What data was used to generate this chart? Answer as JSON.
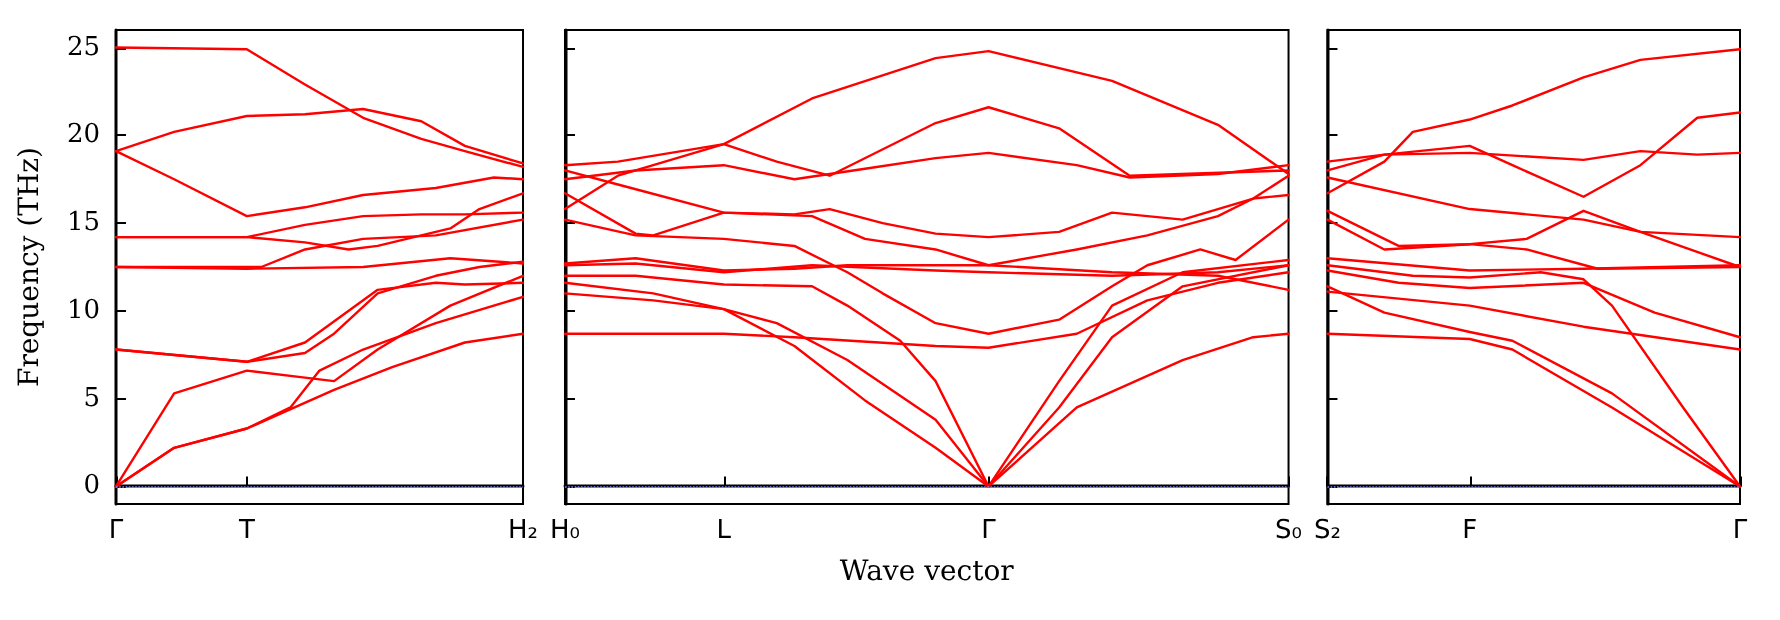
{
  "chart_data": [
    {
      "type": "line",
      "ylabel": "Frequency (THz)",
      "categories": [
        "Γ",
        null,
        null,
        null,
        null,
        null,
        null,
        null,
        null,
        "T",
        null,
        null,
        null,
        null,
        null,
        null,
        null,
        null,
        null,
        null,
        null,
        null,
        null,
        null,
        null,
        null,
        null,
        null,
        "H₂"
      ],
      "ylim": [
        -1,
        26
      ],
      "yticks": [
        0,
        5,
        10,
        15,
        20,
        25
      ],
      "grid": false,
      "line_style": "solid",
      "ref_lines": [
        {
          "axis": "y",
          "value": 0,
          "color": "#8080ff",
          "line_style": "dotted"
        }
      ],
      "series": [
        {
          "color": "#ff0000",
          "values": [
            25.0,
            null,
            null,
            null,
            null,
            null,
            null,
            null,
            null,
            24.9,
            null,
            null,
            null,
            22.9,
            null,
            null,
            null,
            21.0,
            null,
            null,
            null,
            19.8,
            null,
            null,
            19.1,
            null,
            null,
            null,
            18.2
          ]
        },
        {
          "color": "#ff0000",
          "values": [
            19.1,
            null,
            null,
            null,
            20.2,
            null,
            null,
            null,
            null,
            21.1,
            null,
            null,
            null,
            21.2,
            null,
            null,
            null,
            21.5,
            null,
            null,
            null,
            20.8,
            null,
            null,
            19.4,
            null,
            null,
            null,
            18.4
          ]
        },
        {
          "color": "#ff0000",
          "values": [
            19.1,
            null,
            null,
            null,
            17.5,
            null,
            null,
            null,
            null,
            15.4,
            null,
            null,
            null,
            15.9,
            null,
            null,
            null,
            16.6,
            null,
            null,
            null,
            null,
            17.0,
            null,
            null,
            null,
            17.6,
            null,
            17.5
          ]
        },
        {
          "color": "#ff0000",
          "values": [
            14.2,
            null,
            null,
            null,
            null,
            null,
            null,
            null,
            null,
            14.2,
            null,
            null,
            null,
            13.9,
            null,
            null,
            13.5,
            null,
            13.7,
            null,
            null,
            null,
            null,
            14.7,
            null,
            15.8,
            null,
            null,
            16.7
          ]
        },
        {
          "color": "#ff0000",
          "values": [
            14.2,
            null,
            null,
            null,
            null,
            null,
            null,
            null,
            null,
            14.2,
            null,
            null,
            null,
            14.9,
            null,
            null,
            null,
            15.4,
            null,
            null,
            null,
            15.5,
            null,
            null,
            15.5,
            null,
            null,
            null,
            15.6
          ]
        },
        {
          "color": "#ff0000",
          "values": [
            12.5,
            null,
            null,
            null,
            null,
            null,
            null,
            null,
            null,
            12.5,
            12.5,
            null,
            null,
            13.5,
            null,
            null,
            null,
            14.1,
            null,
            null,
            null,
            null,
            14.3,
            null,
            null,
            null,
            null,
            null,
            15.2
          ]
        },
        {
          "color": "#ff0000",
          "values": [
            12.5,
            null,
            null,
            null,
            null,
            null,
            null,
            null,
            null,
            12.4,
            null,
            null,
            null,
            null,
            null,
            null,
            null,
            12.5,
            null,
            null,
            null,
            null,
            null,
            13.0,
            null,
            null,
            null,
            null,
            12.7
          ]
        },
        {
          "color": "#ff0000",
          "values": [
            7.8,
            null,
            null,
            null,
            null,
            null,
            null,
            null,
            null,
            7.1,
            null,
            null,
            null,
            8.2,
            null,
            null,
            null,
            null,
            11.2,
            null,
            null,
            null,
            11.6,
            null,
            11.5,
            null,
            null,
            null,
            11.6
          ]
        },
        {
          "color": "#ff0000",
          "values": [
            7.8,
            null,
            null,
            null,
            null,
            null,
            null,
            null,
            null,
            7.1,
            null,
            null,
            null,
            7.6,
            null,
            8.7,
            null,
            null,
            11.0,
            null,
            null,
            null,
            12.0,
            null,
            null,
            12.5,
            null,
            null,
            12.8
          ]
        },
        {
          "color": "#ff0000",
          "values": [
            0,
            null,
            null,
            null,
            5.3,
            null,
            null,
            null,
            null,
            6.6,
            null,
            null,
            null,
            6.2,
            null,
            6.0,
            null,
            null,
            7.8,
            null,
            null,
            null,
            null,
            10.3,
            null,
            null,
            null,
            null,
            12.0
          ]
        },
        {
          "color": "#ff0000",
          "values": [
            0,
            null,
            null,
            null,
            2.2,
            null,
            null,
            null,
            null,
            3.3,
            null,
            null,
            4.5,
            null,
            6.6,
            null,
            null,
            7.8,
            null,
            null,
            null,
            null,
            9.3,
            null,
            null,
            null,
            null,
            null,
            10.8
          ]
        },
        {
          "color": "#ff0000",
          "values": [
            0,
            null,
            null,
            null,
            2.2,
            null,
            null,
            null,
            null,
            3.3,
            null,
            null,
            null,
            null,
            null,
            5.5,
            null,
            null,
            null,
            6.8,
            null,
            null,
            null,
            null,
            8.2,
            null,
            null,
            null,
            8.7
          ]
        }
      ]
    },
    {
      "type": "line",
      "xlabel": "Wave vector",
      "categories": [
        "H₀",
        null,
        null,
        null,
        null,
        null,
        null,
        null,
        null,
        "L",
        null,
        null,
        null,
        null,
        null,
        null,
        null,
        null,
        null,
        null,
        null,
        null,
        null,
        null,
        "Γ",
        null,
        null,
        null,
        null,
        null,
        null,
        null,
        null,
        null,
        null,
        null,
        null,
        null,
        null,
        null,
        null,
        "S₀"
      ],
      "ylim": [
        -1,
        26
      ],
      "yticks": [
        0,
        5,
        10,
        15,
        20,
        25
      ],
      "tick_labels": "x",
      "grid": false,
      "line_style": "solid",
      "ref_lines": [
        {
          "axis": "y",
          "value": 0,
          "color": "#8080ff",
          "line_style": "dotted"
        }
      ],
      "series": [
        {
          "color": "#ff0000",
          "values": [
            18.3,
            null,
            null,
            18.5,
            null,
            null,
            null,
            null,
            null,
            19.5,
            null,
            null,
            null,
            null,
            22.1,
            null,
            null,
            null,
            null,
            null,
            null,
            24.4,
            null,
            null,
            24.8,
            null,
            null,
            null,
            null,
            null,
            null,
            23.1,
            null,
            null,
            null,
            null,
            null,
            20.6,
            null,
            null,
            null,
            17.8
          ]
        },
        {
          "color": "#ff0000",
          "values": [
            15.8,
            null,
            null,
            17.7,
            null,
            null,
            null,
            null,
            null,
            19.5,
            null,
            null,
            18.5,
            null,
            null,
            17.7,
            null,
            null,
            null,
            null,
            null,
            20.7,
            null,
            null,
            21.6,
            null,
            null,
            null,
            20.4,
            null,
            null,
            null,
            17.7,
            null,
            null,
            null,
            null,
            null,
            null,
            null,
            null,
            18.0
          ]
        },
        {
          "color": "#ff0000",
          "values": [
            17.5,
            null,
            null,
            null,
            18.0,
            null,
            null,
            null,
            null,
            18.3,
            null,
            null,
            null,
            17.5,
            null,
            null,
            null,
            18.1,
            null,
            null,
            null,
            18.7,
            null,
            null,
            19.0,
            null,
            null,
            null,
            null,
            18.3,
            null,
            null,
            17.6,
            null,
            null,
            null,
            null,
            17.8,
            null,
            null,
            null,
            18.3
          ]
        },
        {
          "color": "#ff0000",
          "values": [
            18.0,
            null,
            null,
            17.2,
            null,
            null,
            null,
            null,
            null,
            15.6,
            null,
            null,
            null,
            15.5,
            null,
            15.8,
            null,
            null,
            15.0,
            null,
            null,
            14.4,
            null,
            null,
            14.2,
            null,
            null,
            null,
            14.5,
            null,
            null,
            15.6,
            null,
            null,
            null,
            15.2,
            null,
            null,
            null,
            16.4,
            null,
            17.7
          ]
        },
        {
          "color": "#ff0000",
          "values": [
            16.7,
            null,
            null,
            null,
            14.4,
            14.3,
            null,
            null,
            null,
            15.6,
            null,
            null,
            null,
            null,
            15.4,
            null,
            null,
            14.1,
            null,
            null,
            null,
            13.5,
            null,
            null,
            12.6,
            null,
            null,
            null,
            null,
            13.5,
            null,
            null,
            null,
            14.3,
            null,
            null,
            null,
            15.4,
            null,
            16.4,
            null,
            16.6
          ]
        },
        {
          "color": "#ff0000",
          "values": [
            15.2,
            null,
            null,
            null,
            14.3,
            null,
            null,
            null,
            null,
            14.1,
            null,
            null,
            null,
            13.7,
            null,
            null,
            12.2,
            null,
            11.0,
            null,
            null,
            9.3,
            null,
            null,
            8.7,
            null,
            null,
            null,
            9.5,
            null,
            null,
            11.4,
            null,
            12.6,
            null,
            null,
            13.5,
            null,
            12.9,
            null,
            null,
            15.2
          ]
        },
        {
          "color": "#ff0000",
          "values": [
            12.7,
            null,
            null,
            null,
            13.0,
            null,
            null,
            null,
            null,
            12.3,
            null,
            null,
            null,
            12.4,
            null,
            null,
            12.6,
            null,
            null,
            null,
            null,
            12.6,
            null,
            null,
            12.6,
            null,
            null,
            null,
            null,
            null,
            null,
            12.2,
            null,
            null,
            null,
            null,
            null,
            12.0,
            null,
            null,
            null,
            11.2
          ]
        },
        {
          "color": "#ff0000",
          "values": [
            12.6,
            null,
            null,
            null,
            12.7,
            null,
            null,
            null,
            null,
            12.2,
            null,
            null,
            null,
            null,
            12.6,
            null,
            null,
            null,
            null,
            null,
            null,
            12.3,
            null,
            null,
            12.2,
            null,
            null,
            null,
            null,
            null,
            null,
            12.0,
            null,
            null,
            null,
            null,
            null,
            12.2,
            null,
            null,
            null,
            12.6
          ]
        },
        {
          "color": "#ff0000",
          "values": [
            12.0,
            null,
            null,
            null,
            12.0,
            null,
            null,
            null,
            null,
            11.5,
            null,
            null,
            null,
            null,
            11.4,
            null,
            10.3,
            null,
            null,
            8.3,
            null,
            6.0,
            null,
            null,
            0,
            null,
            null,
            null,
            6.0,
            null,
            null,
            10.3,
            null,
            null,
            null,
            12.2,
            null,
            null,
            null,
            null,
            null,
            12.9
          ]
        },
        {
          "color": "#ff0000",
          "values": [
            11.6,
            null,
            null,
            null,
            null,
            11.0,
            null,
            null,
            null,
            10.1,
            null,
            null,
            9.3,
            null,
            null,
            null,
            7.2,
            null,
            null,
            null,
            null,
            3.8,
            null,
            null,
            0,
            null,
            null,
            null,
            4.5,
            null,
            null,
            8.5,
            null,
            null,
            null,
            11.4,
            null,
            null,
            null,
            null,
            null,
            12.6
          ]
        },
        {
          "color": "#ff0000",
          "values": [
            11.0,
            null,
            null,
            null,
            null,
            10.6,
            null,
            null,
            null,
            10.1,
            null,
            null,
            null,
            8.0,
            null,
            null,
            null,
            4.9,
            null,
            null,
            null,
            2.2,
            null,
            null,
            0,
            null,
            null,
            null,
            null,
            4.5,
            null,
            null,
            null,
            null,
            null,
            7.2,
            null,
            null,
            null,
            8.5,
            null,
            8.7
          ]
        },
        {
          "color": "#ff0000",
          "values": [
            8.7,
            null,
            null,
            null,
            null,
            null,
            null,
            null,
            null,
            8.7,
            null,
            null,
            null,
            8.5,
            null,
            null,
            null,
            null,
            null,
            null,
            null,
            8.0,
            null,
            null,
            7.9,
            null,
            null,
            null,
            null,
            8.7,
            null,
            null,
            null,
            10.6,
            null,
            null,
            null,
            11.6,
            null,
            null,
            null,
            12.2
          ]
        }
      ]
    },
    {
      "type": "line",
      "categories": [
        "S₂",
        null,
        null,
        null,
        null,
        null,
        null,
        null,
        null,
        null,
        "F",
        null,
        null,
        null,
        null,
        null,
        null,
        null,
        null,
        null,
        null,
        null,
        null,
        null,
        null,
        null,
        null,
        null,
        null,
        "Γ"
      ],
      "ylim": [
        -1,
        26
      ],
      "yticks": [
        0,
        5,
        10,
        15,
        20,
        25
      ],
      "tick_labels": "x",
      "grid": false,
      "line_style": "solid",
      "ref_lines": [
        {
          "axis": "y",
          "value": 0,
          "color": "#8080ff",
          "line_style": "dotted"
        }
      ],
      "series": [
        {
          "color": "#ff0000",
          "values": [
            16.7,
            null,
            null,
            null,
            18.5,
            null,
            20.2,
            null,
            null,
            null,
            20.9,
            null,
            null,
            21.7,
            null,
            null,
            null,
            null,
            23.3,
            null,
            null,
            null,
            24.3,
            null,
            null,
            null,
            null,
            null,
            null,
            24.9
          ]
        },
        {
          "color": "#ff0000",
          "values": [
            18.0,
            null,
            null,
            null,
            18.9,
            null,
            null,
            null,
            null,
            null,
            19.4,
            null,
            null,
            18.3,
            null,
            null,
            null,
            null,
            16.5,
            null,
            null,
            null,
            18.3,
            null,
            null,
            null,
            21.0,
            null,
            null,
            21.3
          ]
        },
        {
          "color": "#ff0000",
          "values": [
            18.5,
            null,
            null,
            null,
            18.9,
            null,
            null,
            null,
            null,
            null,
            19.0,
            null,
            null,
            null,
            null,
            null,
            null,
            null,
            18.6,
            null,
            null,
            null,
            19.1,
            null,
            null,
            null,
            18.9,
            null,
            null,
            19.0
          ]
        },
        {
          "color": "#ff0000",
          "values": [
            17.6,
            null,
            null,
            null,
            null,
            null,
            null,
            null,
            null,
            null,
            15.8,
            null,
            null,
            null,
            null,
            null,
            null,
            null,
            15.2,
            null,
            null,
            null,
            14.5,
            null,
            null,
            null,
            null,
            null,
            null,
            14.2
          ]
        },
        {
          "color": "#ff0000",
          "values": [
            15.7,
            null,
            null,
            null,
            null,
            13.7,
            null,
            null,
            null,
            null,
            13.8,
            null,
            null,
            null,
            14.1,
            null,
            null,
            null,
            15.7,
            null,
            null,
            null,
            14.5,
            null,
            null,
            null,
            null,
            null,
            null,
            12.5
          ]
        },
        {
          "color": "#ff0000",
          "values": [
            15.2,
            null,
            null,
            null,
            13.5,
            null,
            null,
            null,
            null,
            null,
            13.8,
            null,
            null,
            null,
            13.5,
            null,
            null,
            null,
            null,
            12.4,
            null,
            null,
            null,
            null,
            null,
            null,
            null,
            null,
            null,
            12.5
          ]
        },
        {
          "color": "#ff0000",
          "values": [
            13.0,
            null,
            null,
            null,
            null,
            null,
            null,
            null,
            null,
            null,
            12.3,
            null,
            null,
            null,
            null,
            null,
            null,
            null,
            12.4,
            null,
            null,
            null,
            null,
            null,
            null,
            null,
            null,
            null,
            null,
            12.6
          ]
        },
        {
          "color": "#ff0000",
          "values": [
            12.6,
            null,
            null,
            null,
            null,
            null,
            12.0,
            null,
            null,
            null,
            11.9,
            null,
            null,
            null,
            null,
            12.2,
            null,
            null,
            11.8,
            null,
            10.3,
            null,
            null,
            null,
            null,
            4.5,
            null,
            null,
            null,
            0
          ]
        },
        {
          "color": "#ff0000",
          "values": [
            12.3,
            null,
            null,
            null,
            null,
            11.6,
            null,
            null,
            null,
            null,
            11.3,
            null,
            null,
            null,
            null,
            null,
            null,
            null,
            11.6,
            null,
            null,
            null,
            null,
            9.9,
            null,
            null,
            null,
            null,
            null,
            8.5
          ]
        },
        {
          "color": "#ff0000",
          "values": [
            11.1,
            null,
            null,
            null,
            null,
            null,
            null,
            null,
            null,
            null,
            10.3,
            null,
            null,
            null,
            null,
            null,
            null,
            null,
            9.1,
            null,
            null,
            null,
            null,
            null,
            null,
            null,
            null,
            null,
            null,
            7.8
          ]
        },
        {
          "color": "#ff0000",
          "values": [
            11.4,
            null,
            null,
            null,
            9.9,
            null,
            null,
            null,
            null,
            null,
            8.8,
            null,
            null,
            8.3,
            null,
            null,
            null,
            null,
            null,
            null,
            5.3,
            null,
            null,
            null,
            null,
            null,
            null,
            null,
            null,
            0
          ]
        },
        {
          "color": "#ff0000",
          "values": [
            8.7,
            null,
            null,
            null,
            null,
            null,
            null,
            null,
            null,
            null,
            8.4,
            null,
            null,
            7.8,
            null,
            null,
            null,
            null,
            null,
            null,
            4.5,
            null,
            null,
            null,
            null,
            null,
            null,
            null,
            null,
            0
          ]
        }
      ]
    }
  ]
}
